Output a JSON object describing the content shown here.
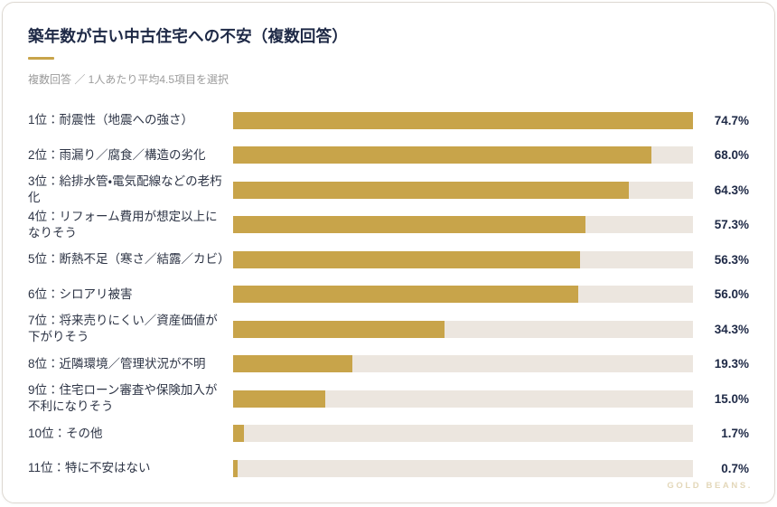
{
  "card": {
    "title": "築年数が古い中古住宅への不安（複数回答）",
    "subtitle": "複数回答 ／ 1人あたり平均4.5項目を選択",
    "footer_logo": "GOLD BEANS."
  },
  "colors": {
    "bar_fill": "#c8a44a",
    "bar_track": "#ece6df",
    "title_navy": "#1e2946",
    "label_text": "#2e3546",
    "subtitle_gray": "#9c9c9c",
    "accent_divider": "#c8a44a",
    "logo_gold": "#e3d7b9",
    "card_border": "#ddd8d1"
  },
  "chart_data": {
    "type": "bar",
    "orientation": "horizontal",
    "title": "築年数が古い中古住宅への不安（複数回答）",
    "subtitle": "複数回答 ／ 1人あたり平均4.5項目を選択",
    "categories": [
      "1位：耐震性（地震への強さ）",
      "2位：雨漏り／腐食／構造の劣化",
      "3位：給排水管・電気配線などの老朽化",
      "4位：リフォーム費用が想定以上になりそう",
      "5位：断熱不足（寒さ／結露／カビ）",
      "6位：シロアリ被害",
      "7位：将来売りにくい／資産価値が下がりそう",
      "8位：近隣環境／管理状況が不明",
      "9位：住宅ローン審査や保険加入が不利になりそう",
      "10位：その他",
      "11位：特に不安はない"
    ],
    "values": [
      74.7,
      68.0,
      64.3,
      57.3,
      56.3,
      56.0,
      34.3,
      19.3,
      15.0,
      1.7,
      0.7
    ],
    "value_labels": [
      "74.7%",
      "68.0%",
      "64.3%",
      "57.3%",
      "56.3%",
      "56.0%",
      "34.3%",
      "19.3%",
      "15.0%",
      "1.7%",
      "0.7%"
    ],
    "unit": "%",
    "scale_max": 74.7,
    "xlim": [
      0,
      74.7
    ],
    "grid": false,
    "legend": false,
    "note": "bars scaled relative to maximum value (74.7% = full track width)"
  }
}
